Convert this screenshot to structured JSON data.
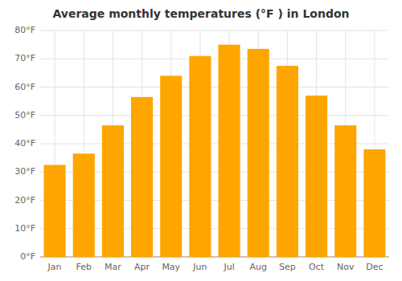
{
  "chart_data": {
    "type": "bar",
    "title": "Average monthly temperatures (°F ) in London",
    "categories": [
      "Jan",
      "Feb",
      "Mar",
      "Apr",
      "May",
      "Jun",
      "Jul",
      "Aug",
      "Sep",
      "Oct",
      "Nov",
      "Dec"
    ],
    "values": [
      32.5,
      36.5,
      46.5,
      56.5,
      64,
      71,
      75,
      73.5,
      67.5,
      57,
      46.5,
      38
    ],
    "color": "#FFA500",
    "ylim": [
      0,
      80
    ],
    "yticks": [
      {
        "value": 0,
        "label": "0°F"
      },
      {
        "value": 10,
        "label": "10°F"
      },
      {
        "value": 20,
        "label": "20°F"
      },
      {
        "value": 30,
        "label": "30°F"
      },
      {
        "value": 40,
        "label": "40°F"
      },
      {
        "value": 50,
        "label": "50°F"
      },
      {
        "value": 60,
        "label": "60°F"
      },
      {
        "value": 70,
        "label": "70°F"
      },
      {
        "value": 80,
        "label": "80°F"
      }
    ],
    "grid": true
  }
}
